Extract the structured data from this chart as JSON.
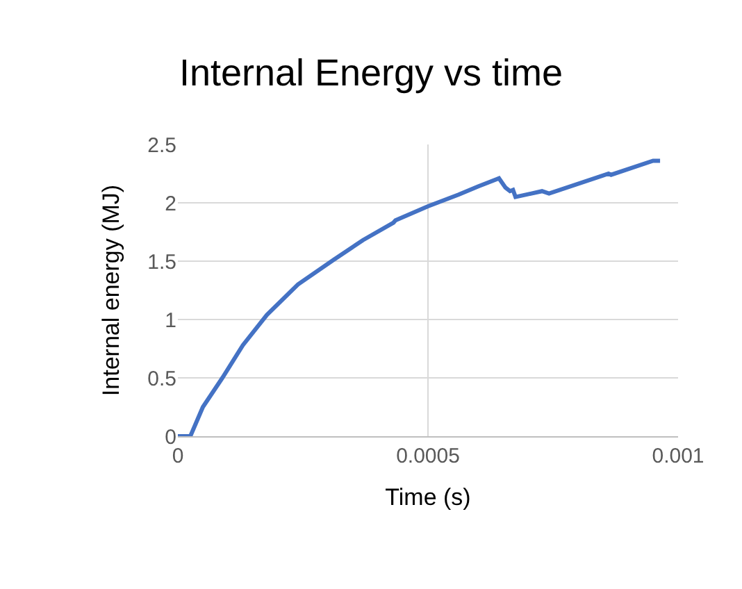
{
  "chart_data": {
    "type": "line",
    "title": "Internal Energy vs time",
    "xlabel": "Time (s)",
    "ylabel": "Internal energy (MJ)",
    "x": [
      0,
      2.5e-05,
      5e-05,
      8.9e-05,
      0.00013,
      0.000178,
      0.00024,
      0.000311,
      0.00037,
      0.000431,
      0.000435,
      0.0005,
      0.000561,
      0.0006,
      0.000642,
      0.000655,
      0.000664,
      0.00067,
      0.000675,
      0.000728,
      0.000742,
      0.000861,
      0.000866,
      0.00095,
      0.000964
    ],
    "series": [
      {
        "color": "#4472c4",
        "values": [
          0,
          0,
          0.25,
          0.5,
          0.78,
          1.04,
          1.3,
          1.51,
          1.68,
          1.83,
          1.85,
          1.97,
          2.07,
          2.14,
          2.21,
          2.13,
          2.1,
          2.11,
          2.05,
          2.1,
          2.08,
          2.25,
          2.24,
          2.36,
          2.36
        ]
      }
    ],
    "xlim": [
      0,
      0.001
    ],
    "xticks": [
      0,
      0.0005,
      0.001
    ],
    "ylim": [
      0,
      2.5
    ],
    "yticks": [
      0,
      0.5,
      1,
      1.5,
      2,
      2.5
    ],
    "grid": true,
    "marker": "none",
    "line_style": "solid"
  }
}
